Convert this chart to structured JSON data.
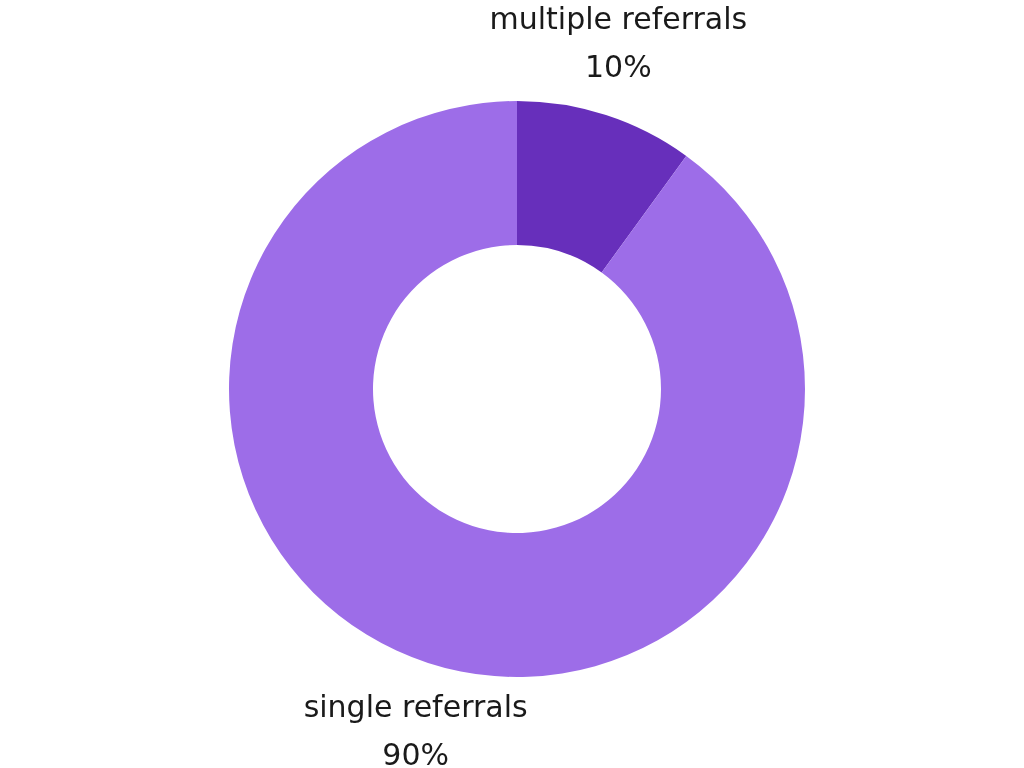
{
  "chart_data": {
    "type": "donut",
    "categories": [
      "multiple referrals",
      "single referrals"
    ],
    "values": [
      10,
      90
    ],
    "colors": [
      "#672fbb",
      "#9d6de8"
    ],
    "value_labels": [
      "10%",
      "90%"
    ]
  }
}
